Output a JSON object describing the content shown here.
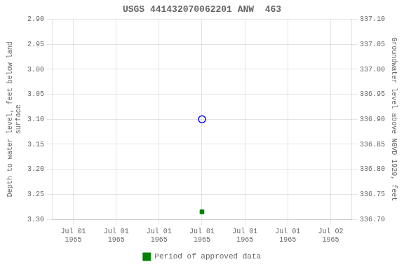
{
  "chart_data": {
    "type": "scatter",
    "title": "USGS 441432070062201 ANW  463",
    "categories": [
      "Jul 01\n1965",
      "Jul 01\n1965",
      "Jul 01\n1965",
      "Jul 01\n1965",
      "Jul 01\n1965",
      "Jul 01\n1965",
      "Jul 02\n1965"
    ],
    "series": [
      {
        "color": "blue",
        "marker": "circle-open",
        "values": [
          null,
          null,
          null,
          3.1,
          null,
          null,
          null
        ]
      },
      {
        "name": "Period of approved data",
        "color": "#008000",
        "marker": "square",
        "values": [
          null,
          null,
          null,
          3.285,
          null,
          null,
          null
        ]
      }
    ],
    "ylabel": "Depth to water level, feet below land\nsurface",
    "y2label": "Groundwater level above NGVD 1929, feet",
    "ylim": [
      3.3,
      2.9
    ],
    "yticks": [
      {
        "value": 2.9,
        "label": "2.90"
      },
      2.95,
      {
        "value": 3.0,
        "label": "3.00"
      },
      3.05,
      {
        "value": 3.1,
        "label": "3.10"
      },
      3.15,
      {
        "value": 3.2,
        "label": "3.20"
      },
      3.25,
      {
        "value": 3.3,
        "label": "3.30"
      }
    ],
    "y2lim": [
      336.7,
      337.1
    ],
    "y2ticks": [
      {
        "value": 337.1,
        "label": "337.10"
      },
      337.05,
      {
        "value": 337.0,
        "label": "337.00"
      },
      336.95,
      {
        "value": 336.9,
        "label": "336.90"
      },
      336.85,
      {
        "value": 336.8,
        "label": "336.80"
      },
      336.75,
      {
        "value": 336.7,
        "label": "336.70"
      }
    ],
    "grid": true,
    "legend": "bottom"
  }
}
